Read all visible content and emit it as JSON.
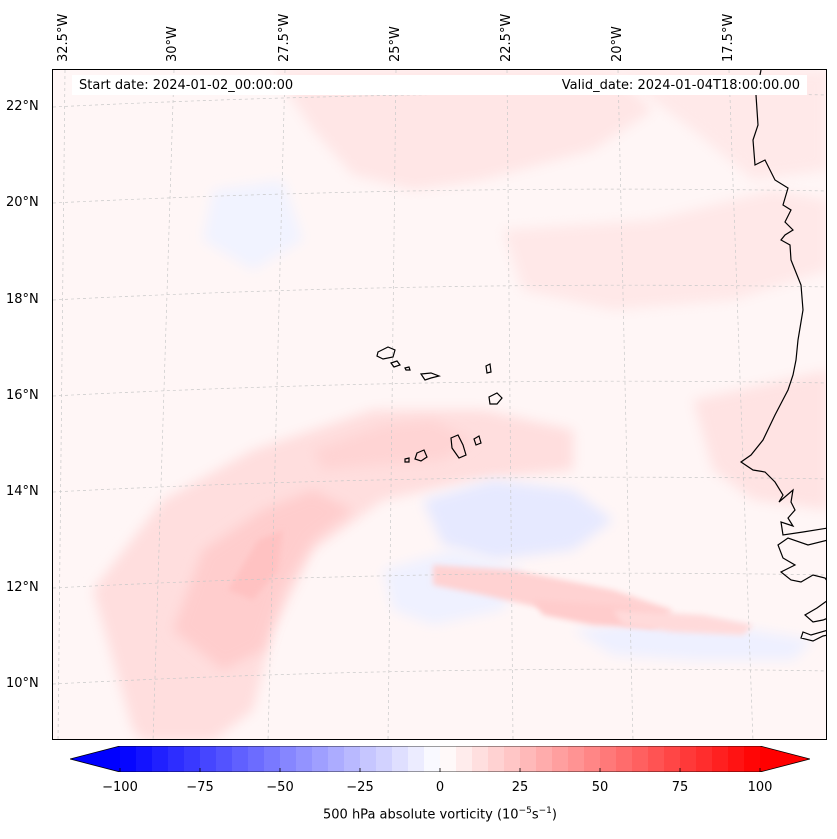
{
  "header": {
    "start_date": "Start date: 2024-01-02_00:00:00",
    "valid_date": "Valid_date: 2024-01-04T18:00:00.00"
  },
  "map": {
    "projection": "lambert-conformal",
    "longitude_labels": [
      "32.5°W",
      "30°W",
      "27.5°W",
      "25°W",
      "22.5°W",
      "20°W",
      "17.5°W"
    ],
    "latitude_labels": [
      "22°N",
      "20°N",
      "18°N",
      "16°N",
      "14°N",
      "12°N",
      "10°N"
    ],
    "features": [
      "cape-verde-islands",
      "west-africa-coastline"
    ],
    "colors": {
      "positive": "#ff0000",
      "negative": "#0000ff",
      "neutral": "#ffffff",
      "coast": "#000000",
      "grid": "#bbbbbb"
    }
  },
  "colorbar": {
    "variable_label": "500 hPa absolute vorticity (10",
    "units_exp1": "−5",
    "units_mid": "s",
    "units_exp2": "−1",
    "units_close": ")",
    "range": [
      -100,
      100
    ],
    "ticks": [
      "−100",
      "−75",
      "−50",
      "−25",
      "0",
      "25",
      "50",
      "75",
      "100"
    ],
    "extend": "both",
    "levels": 40
  }
}
